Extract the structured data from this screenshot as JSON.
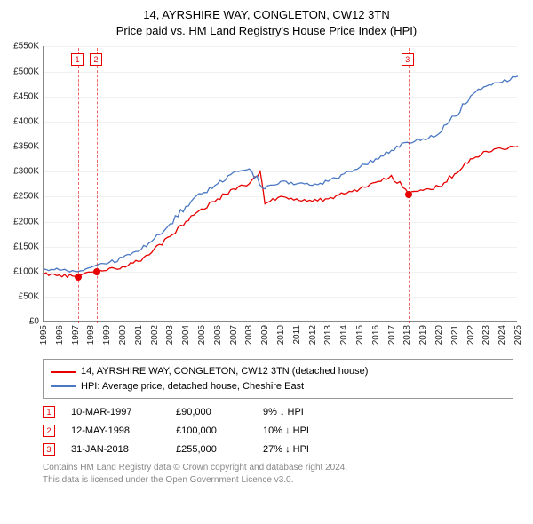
{
  "title_line1": "14, AYRSHIRE WAY, CONGLETON, CW12 3TN",
  "title_line2": "Price paid vs. HM Land Registry's House Price Index (HPI)",
  "chart": {
    "type": "line",
    "x_years": [
      1995,
      1996,
      1997,
      1998,
      1999,
      2000,
      2001,
      2002,
      2003,
      2004,
      2005,
      2006,
      2007,
      2008,
      2009,
      2010,
      2011,
      2012,
      2013,
      2014,
      2015,
      2016,
      2017,
      2018,
      2019,
      2020,
      2021,
      2022,
      2023,
      2024,
      2025
    ],
    "xmin": 1995,
    "xmax": 2025,
    "ylim": [
      0,
      550000
    ],
    "ytick_step": 50000,
    "ytick_labels": [
      "£0",
      "£50K",
      "£100K",
      "£150K",
      "£200K",
      "£250K",
      "£300K",
      "£350K",
      "£400K",
      "£450K",
      "£500K",
      "£550K"
    ],
    "background_color": "#ffffff",
    "grid_color": "#888888",
    "series": [
      {
        "name": "14, AYRSHIRE WAY, CONGLETON, CW12 3TN (detached house)",
        "color": "#e60000",
        "width": 1.3,
        "data": [
          [
            1995,
            95000
          ],
          [
            1996,
            93000
          ],
          [
            1997,
            90000
          ],
          [
            1997.5,
            95000
          ],
          [
            1998.37,
            100000
          ],
          [
            1999,
            102000
          ],
          [
            2000,
            110000
          ],
          [
            2001,
            120000
          ],
          [
            2002,
            145000
          ],
          [
            2003,
            170000
          ],
          [
            2004,
            200000
          ],
          [
            2005,
            225000
          ],
          [
            2006,
            245000
          ],
          [
            2007,
            265000
          ],
          [
            2008,
            275000
          ],
          [
            2008.7,
            300000
          ],
          [
            2009,
            235000
          ],
          [
            2010,
            250000
          ],
          [
            2011,
            245000
          ],
          [
            2012,
            240000
          ],
          [
            2013,
            245000
          ],
          [
            2014,
            255000
          ],
          [
            2015,
            265000
          ],
          [
            2016,
            278000
          ],
          [
            2017,
            292000
          ],
          [
            2018.08,
            255000
          ],
          [
            2018.5,
            260000
          ],
          [
            2019,
            262000
          ],
          [
            2020,
            270000
          ],
          [
            2021,
            295000
          ],
          [
            2022,
            325000
          ],
          [
            2023,
            340000
          ],
          [
            2024,
            345000
          ],
          [
            2025,
            350000
          ]
        ]
      },
      {
        "name": "HPI: Average price, detached house, Cheshire East",
        "color": "#4a78c4",
        "width": 1.3,
        "data": [
          [
            1995,
            105000
          ],
          [
            1996,
            103000
          ],
          [
            1997,
            100000
          ],
          [
            1998,
            108000
          ],
          [
            1999,
            115000
          ],
          [
            2000,
            128000
          ],
          [
            2001,
            140000
          ],
          [
            2002,
            165000
          ],
          [
            2003,
            195000
          ],
          [
            2004,
            230000
          ],
          [
            2005,
            255000
          ],
          [
            2006,
            275000
          ],
          [
            2007,
            298000
          ],
          [
            2008,
            305000
          ],
          [
            2009,
            265000
          ],
          [
            2010,
            280000
          ],
          [
            2011,
            275000
          ],
          [
            2012,
            272000
          ],
          [
            2013,
            280000
          ],
          [
            2014,
            295000
          ],
          [
            2015,
            308000
          ],
          [
            2016,
            325000
          ],
          [
            2017,
            342000
          ],
          [
            2018,
            358000
          ],
          [
            2019,
            365000
          ],
          [
            2020,
            375000
          ],
          [
            2021,
            410000
          ],
          [
            2022,
            450000
          ],
          [
            2023,
            470000
          ],
          [
            2024,
            478000
          ],
          [
            2025,
            490000
          ]
        ]
      }
    ],
    "markers": [
      {
        "n": "1",
        "x": 1997.19,
        "y": 90000,
        "color": "#e60000",
        "label_y_top": 8
      },
      {
        "n": "2",
        "x": 1998.37,
        "y": 100000,
        "color": "#e60000",
        "label_y_top": 8
      },
      {
        "n": "3",
        "x": 2018.08,
        "y": 255000,
        "color": "#e60000",
        "label_y_top": 8
      }
    ]
  },
  "legend": [
    {
      "color": "#e60000",
      "label": "14, AYRSHIRE WAY, CONGLETON, CW12 3TN (detached house)"
    },
    {
      "color": "#4a78c4",
      "label": "HPI: Average price, detached house, Cheshire East"
    }
  ],
  "events": [
    {
      "n": "1",
      "color": "#e60000",
      "date": "10-MAR-1997",
      "price": "£90,000",
      "delta": "9% ↓ HPI"
    },
    {
      "n": "2",
      "color": "#e60000",
      "date": "12-MAY-1998",
      "price": "£100,000",
      "delta": "10% ↓ HPI"
    },
    {
      "n": "3",
      "color": "#e60000",
      "date": "31-JAN-2018",
      "price": "£255,000",
      "delta": "27% ↓ HPI"
    }
  ],
  "footer_line1": "Contains HM Land Registry data © Crown copyright and database right 2024.",
  "footer_line2": "This data is licensed under the Open Government Licence v3.0."
}
